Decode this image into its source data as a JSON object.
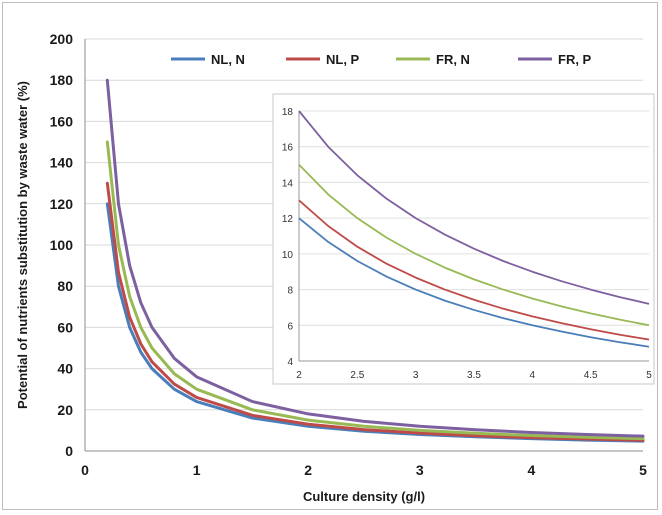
{
  "chart_data": [
    {
      "type": "line",
      "title": "",
      "xlabel": "Culture density (g/l)",
      "ylabel": "Potential of nutrients substitution by waste water (%)",
      "xlim": [
        0,
        5
      ],
      "ylim": [
        0,
        200
      ],
      "xticks": [
        0,
        1,
        2,
        3,
        4,
        5
      ],
      "yticks": [
        0,
        20,
        40,
        60,
        80,
        100,
        120,
        140,
        160,
        180,
        200
      ],
      "grid": "horizontal",
      "legend": "top",
      "x": [
        0.2,
        0.3,
        0.4,
        0.5,
        0.6,
        0.8,
        1.0,
        1.5,
        2.0,
        2.5,
        3.0,
        3.5,
        4.0,
        4.5,
        5.0
      ],
      "series": [
        {
          "name": "NL, N",
          "color": "#4a7ebb",
          "values": [
            120,
            80,
            60,
            48,
            40,
            30,
            24,
            16,
            12,
            9.6,
            8,
            6.9,
            6,
            5.3,
            4.8
          ]
        },
        {
          "name": "NL, P",
          "color": "#be4b48",
          "values": [
            130,
            86.7,
            65,
            52,
            43.3,
            32.5,
            26,
            17.3,
            13,
            10.4,
            8.7,
            7.4,
            6.5,
            5.8,
            5.2
          ]
        },
        {
          "name": "FR, N",
          "color": "#98b954",
          "values": [
            150,
            100,
            75,
            60,
            50,
            37.5,
            30,
            20,
            15,
            12,
            10,
            8.6,
            7.5,
            6.7,
            6
          ]
        },
        {
          "name": "FR, P",
          "color": "#7d60a0",
          "values": [
            180,
            120,
            90,
            72,
            60,
            45,
            36,
            24,
            18,
            14.4,
            12,
            10.3,
            9,
            8,
            7.2
          ]
        }
      ]
    },
    {
      "type": "line",
      "title": "",
      "xlabel": "",
      "ylabel": "",
      "xlim": [
        2,
        5
      ],
      "ylim": [
        4,
        18
      ],
      "xticks": [
        2,
        2.5,
        3,
        3.5,
        4,
        4.5,
        5
      ],
      "xtick_labels": [
        "2",
        "2.5",
        "3",
        "3.5",
        "4",
        "4.5",
        "5"
      ],
      "yticks": [
        4,
        6,
        8,
        10,
        12,
        14,
        16,
        18
      ],
      "grid": "horizontal",
      "x": [
        2.0,
        2.25,
        2.5,
        2.75,
        3.0,
        3.25,
        3.5,
        3.75,
        4.0,
        4.25,
        4.5,
        4.75,
        5.0
      ],
      "series": [
        {
          "color": "#4a7ebb",
          "values": [
            12,
            10.67,
            9.6,
            8.73,
            8,
            7.38,
            6.86,
            6.4,
            6,
            5.65,
            5.33,
            5.05,
            4.8
          ]
        },
        {
          "color": "#be4b48",
          "values": [
            13,
            11.56,
            10.4,
            9.45,
            8.67,
            8,
            7.43,
            6.93,
            6.5,
            6.12,
            5.78,
            5.47,
            5.2
          ]
        },
        {
          "color": "#98b954",
          "values": [
            15,
            13.33,
            12,
            10.91,
            10,
            9.23,
            8.57,
            8,
            7.5,
            7.06,
            6.67,
            6.32,
            6
          ]
        },
        {
          "color": "#7d60a0",
          "values": [
            18,
            16,
            14.4,
            13.09,
            12,
            11.08,
            10.29,
            9.6,
            9,
            8.47,
            8,
            7.58,
            7.2
          ]
        }
      ]
    }
  ]
}
